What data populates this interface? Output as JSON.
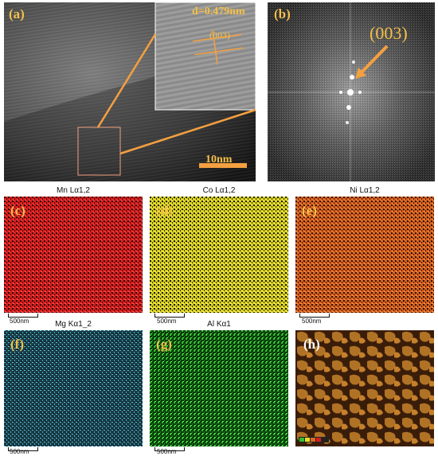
{
  "panels": {
    "a": {
      "label": "(a)",
      "d_spacing": "d=0.479nm",
      "plane": "(003)",
      "scale_text": "10nm"
    },
    "b": {
      "label": "(b)",
      "plane": "(003)"
    },
    "c": {
      "label": "(c)",
      "title": "Mn Lα1,2",
      "scale_text": "500nm",
      "color": "#d81e1e"
    },
    "d": {
      "label": "(d)",
      "title": "Co Lα1,2",
      "scale_text": "500nm",
      "color": "#e8e02a"
    },
    "e": {
      "label": "(e)",
      "title": "Ni Lα1,2",
      "scale_text": "500nm",
      "color": "#e0661e"
    },
    "f": {
      "label": "(f)",
      "title": "Mg Kα1_2",
      "scale_text": "500nm",
      "color": "#3fb0c8"
    },
    "g": {
      "label": "(g)",
      "title": "Al Kα1",
      "scale_text": "500nm",
      "color": "#2fbf2f"
    },
    "h": {
      "label": "(h)"
    }
  },
  "colors": {
    "accent": "#f4a040",
    "label": "#f4c04a"
  }
}
